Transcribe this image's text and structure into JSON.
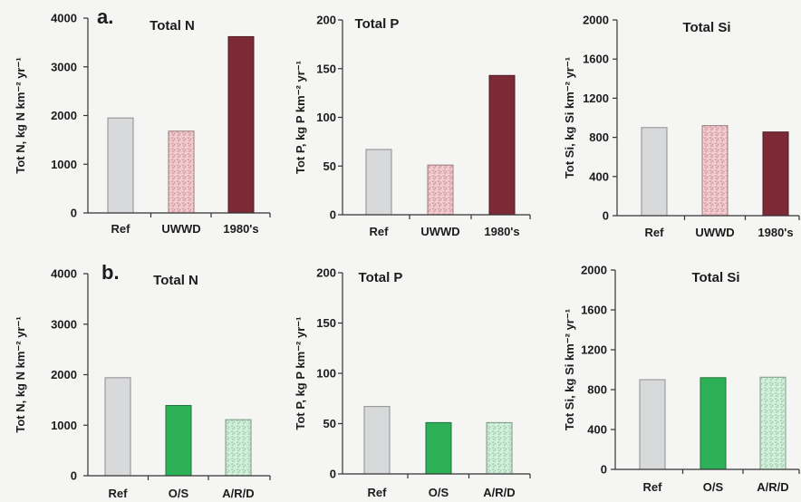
{
  "chart_data": [
    {
      "type": "bar",
      "panel_label": "a.",
      "title": "Total N",
      "ylabel": "Tot N, kg N km⁻² yr⁻¹",
      "categories": [
        "Ref",
        "UWWD",
        "1980's"
      ],
      "values": [
        1950,
        1680,
        3620
      ],
      "ylim": [
        0,
        4000
      ],
      "yticks": [
        0,
        1000,
        2000,
        3000,
        4000
      ],
      "colors": [
        "#d8d9db",
        "#efbdc2",
        "#7c2a36"
      ],
      "grid": false
    },
    {
      "type": "bar",
      "title": "Total P",
      "ylabel": "Tot P, kg P km⁻² yr⁻¹",
      "categories": [
        "Ref",
        "UWWD",
        "1980's"
      ],
      "values": [
        67,
        51,
        143
      ],
      "ylim": [
        0,
        200
      ],
      "yticks": [
        0,
        50,
        100,
        150,
        200
      ],
      "colors": [
        "#d8d9db",
        "#efbdc2",
        "#7c2a36"
      ],
      "grid": false
    },
    {
      "type": "bar",
      "title": "Total Si",
      "ylabel": "Tot Si, kg Si km⁻² yr⁻¹",
      "categories": [
        "Ref",
        "UWWD",
        "1980's"
      ],
      "values": [
        900,
        920,
        855
      ],
      "ylim": [
        0,
        2000
      ],
      "yticks": [
        0,
        400,
        800,
        1200,
        1600,
        2000
      ],
      "colors": [
        "#d8d9db",
        "#efbdc2",
        "#7c2a36"
      ],
      "grid": false
    },
    {
      "type": "bar",
      "panel_label": "b.",
      "title": "Total N",
      "ylabel": "Tot N, kg N km⁻² yr⁻¹",
      "categories": [
        "Ref",
        "O/S",
        "A/R/D"
      ],
      "values": [
        1940,
        1390,
        1110
      ],
      "ylim": [
        0,
        4000
      ],
      "yticks": [
        0,
        1000,
        2000,
        3000,
        4000
      ],
      "colors": [
        "#d8d9db",
        "#2eb058",
        "#c6ecd1"
      ],
      "grid": false
    },
    {
      "type": "bar",
      "title": "Total P",
      "ylabel": "Tot P, kg P km⁻² yr⁻¹",
      "categories": [
        "Ref",
        "O/S",
        "A/R/D"
      ],
      "values": [
        67,
        51,
        51
      ],
      "ylim": [
        0,
        200
      ],
      "yticks": [
        0,
        50,
        100,
        150,
        200
      ],
      "colors": [
        "#d8d9db",
        "#2eb058",
        "#c6ecd1"
      ],
      "grid": false
    },
    {
      "type": "bar",
      "title": "Total Si",
      "ylabel": "Tot Si, kg Si km⁻² yr⁻¹",
      "categories": [
        "Ref",
        "O/S",
        "A/R/D"
      ],
      "values": [
        900,
        920,
        925
      ],
      "ylim": [
        0,
        2000
      ],
      "yticks": [
        0,
        400,
        800,
        1200,
        1600,
        2000
      ],
      "colors": [
        "#d8d9db",
        "#2eb058",
        "#c6ecd1"
      ],
      "grid": false
    }
  ]
}
